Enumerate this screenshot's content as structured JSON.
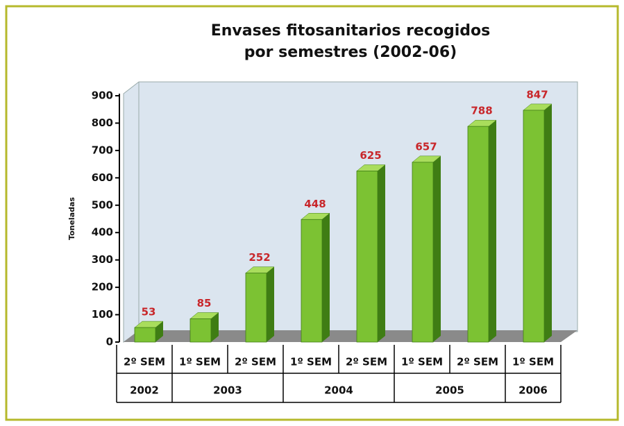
{
  "chart_data": {
    "type": "bar3d",
    "title": [
      "Envases fitosanitarios recogidos",
      "por semestres (2002-06)"
    ],
    "y_label": "Toneladas",
    "categories": [
      "2º SEM",
      "1º SEM",
      "2º SEM",
      "1º SEM",
      "2º SEM",
      "1º SEM",
      "2º SEM",
      "1º SEM"
    ],
    "groups": [
      {
        "label": "2002",
        "span": 1
      },
      {
        "label": "2003",
        "span": 2
      },
      {
        "label": "2004",
        "span": 2
      },
      {
        "label": "2005",
        "span": 2
      },
      {
        "label": "2006",
        "span": 1
      }
    ],
    "values": [
      53,
      85,
      252,
      448,
      625,
      657,
      788,
      847
    ],
    "color": "#7cc233",
    "label_color": "#c8262a",
    "ylim": [
      0,
      900
    ],
    "yticks": [
      0,
      100,
      200,
      300,
      400,
      500,
      600,
      700,
      800,
      900
    ]
  }
}
